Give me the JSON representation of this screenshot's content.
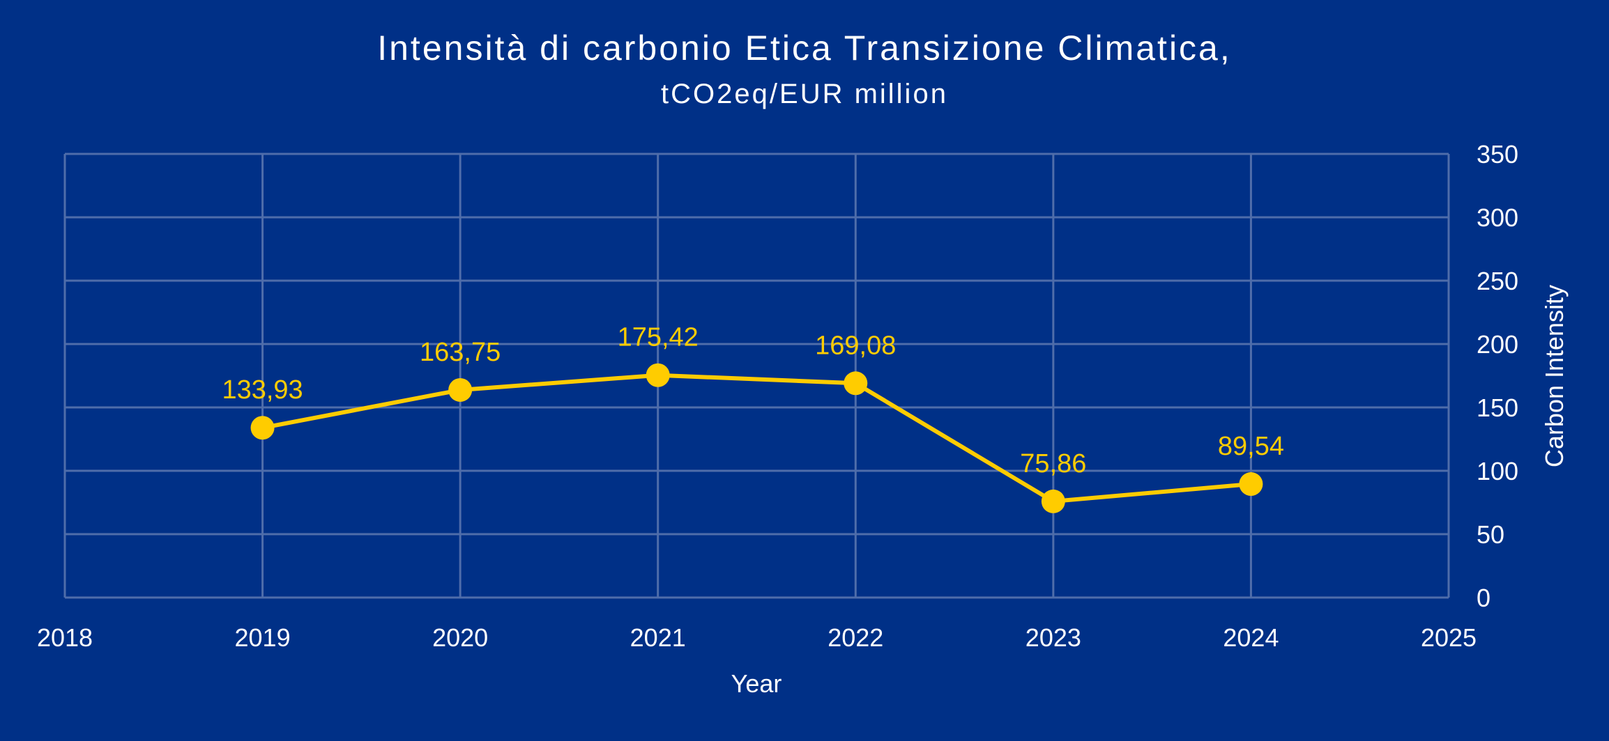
{
  "chart_data": {
    "type": "line",
    "title": "Intensità di carbonio Etica Transizione Climatica,",
    "subtitle": "tCO2eq/EUR million",
    "xlabel": "Year",
    "ylabel": "Carbon Intensity",
    "x": [
      2019,
      2020,
      2021,
      2022,
      2023,
      2024
    ],
    "series": [
      {
        "name": "Carbon Intensity",
        "values": [
          133.93,
          163.75,
          175.42,
          169.08,
          75.86,
          89.54
        ],
        "labels": [
          "133,93",
          "163,75",
          "175,42",
          "169,08",
          "75,86",
          "89,54"
        ]
      }
    ],
    "xlim": [
      2018,
      2025
    ],
    "ylim": [
      0,
      350
    ],
    "xticks": [
      "2018",
      "2019",
      "2020",
      "2021",
      "2022",
      "2023",
      "2024",
      "2025"
    ],
    "yticks": [
      "0",
      "50",
      "100",
      "150",
      "200",
      "250",
      "300",
      "350"
    ],
    "y_axis_side": "right",
    "grid": true,
    "legend": "none",
    "colors": {
      "background": "#003087",
      "line": "#FFCC00",
      "grid": "#4F6DAA",
      "text": "#FFFFFF"
    }
  }
}
